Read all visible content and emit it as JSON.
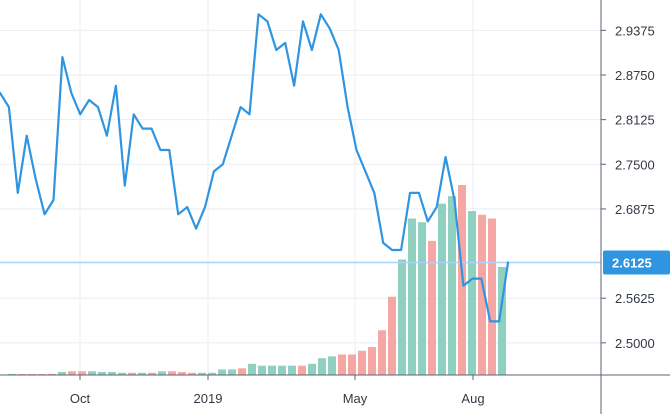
{
  "colors": {
    "line": "#2f95e0",
    "vol_up": "#8fd0c0",
    "vol_down": "#f4a7a3",
    "grid": "#e8eef5",
    "axis": "#5b6470",
    "price_line": "#a9d2f3",
    "price_tag": "#2f95e0",
    "text": "#333a44"
  },
  "chart_data": {
    "type": "line",
    "title": "",
    "xlabel": "",
    "ylabel": "",
    "x_tick_labels": [
      "Oct",
      "2019",
      "May",
      "Aug"
    ],
    "y_tick_labels": [
      "2.9375",
      "2.8750",
      "2.8125",
      "2.7500",
      "2.6875",
      "2.5625",
      "2.5000"
    ],
    "y_ticks": [
      2.9375,
      2.875,
      2.8125,
      2.75,
      2.6875,
      2.5625,
      2.5
    ],
    "ylim": [
      2.455,
      2.98
    ],
    "last_value": 2.6125,
    "last_value_label": "2.6125",
    "grid": true,
    "legend": "none",
    "series": [
      {
        "values": [
          2.85,
          2.83,
          2.71,
          2.79,
          2.73,
          2.68,
          2.7,
          2.9,
          2.85,
          2.82,
          2.84,
          2.83,
          2.79,
          2.86,
          2.72,
          2.82,
          2.8,
          2.8,
          2.77,
          2.77,
          2.68,
          2.69,
          2.66,
          2.69,
          2.74,
          2.75,
          2.79,
          2.83,
          2.82,
          2.96,
          2.95,
          2.91,
          2.92,
          2.86,
          2.95,
          2.91,
          2.96,
          2.94,
          2.91,
          2.83,
          2.77,
          2.74,
          2.71,
          2.64,
          2.63,
          2.63,
          2.71,
          2.71,
          2.67,
          2.69,
          2.76,
          2.7,
          2.58,
          2.59,
          2.59,
          2.53,
          2.53,
          2.6125
        ]
      }
    ],
    "volume": {
      "values": [
        0.3,
        0.2,
        0.2,
        0.2,
        0.3,
        0.8,
        1.0,
        1.0,
        1.0,
        0.8,
        0.8,
        0.6,
        0.6,
        0.6,
        0.6,
        1.0,
        1.0,
        0.8,
        0.6,
        0.6,
        0.6,
        1.5,
        1.5,
        1.8,
        3.0,
        2.5,
        2.5,
        2.5,
        2.5,
        2.5,
        3.0,
        4.5,
        5.0,
        5.5,
        5.5,
        6.5,
        7.5,
        12.0,
        21.0,
        31.0,
        42.0,
        41.0,
        36.0,
        46.0,
        48.0,
        51.0,
        44.0,
        43.0,
        42.0,
        29.0
      ],
      "up": [
        true,
        false,
        false,
        false,
        false,
        true,
        false,
        false,
        true,
        true,
        true,
        true,
        false,
        true,
        false,
        true,
        false,
        false,
        false,
        true,
        true,
        true,
        true,
        false,
        true,
        true,
        true,
        true,
        true,
        false,
        true,
        true,
        true,
        false,
        false,
        false,
        false,
        false,
        false,
        true,
        true,
        true,
        false,
        true,
        true,
        false,
        true,
        false,
        false,
        true
      ]
    }
  }
}
